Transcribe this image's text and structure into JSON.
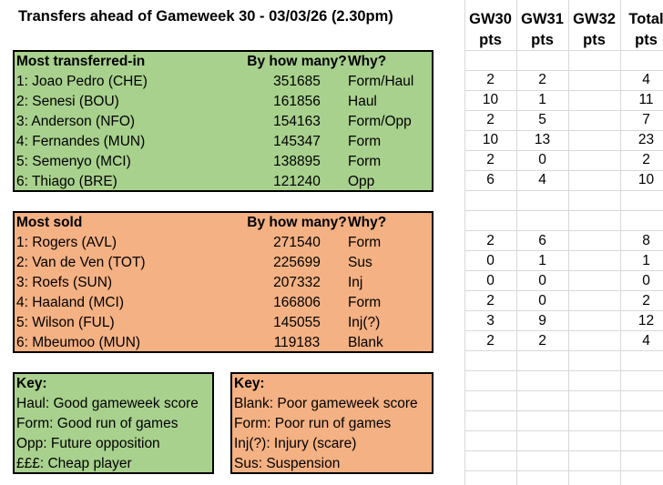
{
  "title": "Transfers ahead of Gameweek 30 - 03/03/26 (2.30pm)",
  "columns": {
    "gw30": [
      "GW30",
      "pts"
    ],
    "gw31": [
      "GW31",
      "pts"
    ],
    "gw32": [
      "GW32",
      "pts"
    ],
    "total": [
      "Total",
      "pts"
    ]
  },
  "transferred_in": {
    "header": "Most transferred-in",
    "count_header": "By how many?",
    "why_header": "Why?",
    "rows": [
      {
        "name": "1: Joao Pedro (CHE)",
        "count": "351685",
        "why": "Form/Haul",
        "gw30": "2",
        "gw31": "2",
        "gw32": "",
        "total": "4"
      },
      {
        "name": "2: Senesi (BOU)",
        "count": "161856",
        "why": "Haul",
        "gw30": "10",
        "gw31": "1",
        "gw32": "",
        "total": "11"
      },
      {
        "name": "3: Anderson (NFO)",
        "count": "154163",
        "why": "Form/Opp",
        "gw30": "2",
        "gw31": "5",
        "gw32": "",
        "total": "7"
      },
      {
        "name": "4: Fernandes (MUN)",
        "count": "145347",
        "why": "Form",
        "gw30": "10",
        "gw31": "13",
        "gw32": "",
        "total": "23"
      },
      {
        "name": "5: Semenyo (MCI)",
        "count": "138895",
        "why": "Form",
        "gw30": "2",
        "gw31": "0",
        "gw32": "",
        "total": "2"
      },
      {
        "name": "6: Thiago (BRE)",
        "count": "121240",
        "why": "Opp",
        "gw30": "6",
        "gw31": "4",
        "gw32": "",
        "total": "10"
      }
    ]
  },
  "sold": {
    "header": "Most sold",
    "count_header": "By how many?",
    "why_header": "Why?",
    "rows": [
      {
        "name": "1: Rogers (AVL)",
        "count": "271540",
        "why": "Form",
        "gw30": "2",
        "gw31": "6",
        "gw32": "",
        "total": "8"
      },
      {
        "name": "2: Van de Ven (TOT)",
        "count": "225699",
        "why": "Sus",
        "gw30": "0",
        "gw31": "1",
        "gw32": "",
        "total": "1"
      },
      {
        "name": "3: Roefs (SUN)",
        "count": "207332",
        "why": "Inj",
        "gw30": "0",
        "gw31": "0",
        "gw32": "",
        "total": "0"
      },
      {
        "name": "4: Haaland (MCI)",
        "count": "166806",
        "why": "Form",
        "gw30": "2",
        "gw31": "0",
        "gw32": "",
        "total": "2"
      },
      {
        "name": "5: Wilson (FUL)",
        "count": "145055",
        "why": "Inj(?)",
        "gw30": "3",
        "gw31": "9",
        "gw32": "",
        "total": "12"
      },
      {
        "name": "6: Mbeumoo (MUN)",
        "count": "119183",
        "why": "Blank",
        "gw30": "2",
        "gw31": "2",
        "gw32": "",
        "total": "4"
      }
    ]
  },
  "key_green": {
    "header": "Key:",
    "lines": [
      "Haul: Good gameweek score",
      "Form: Good run of games",
      "Opp: Future opposition",
      "£££: Cheap player"
    ]
  },
  "key_orange": {
    "header": "Key:",
    "lines": [
      "Blank: Poor gameweek score",
      "Form: Poor run of games",
      "Inj(?): Injury (scare)",
      "Sus: Suspension"
    ]
  },
  "colors": {
    "green": "#a9d18e",
    "orange": "#f4b183",
    "grid": "#d9d9d9"
  }
}
